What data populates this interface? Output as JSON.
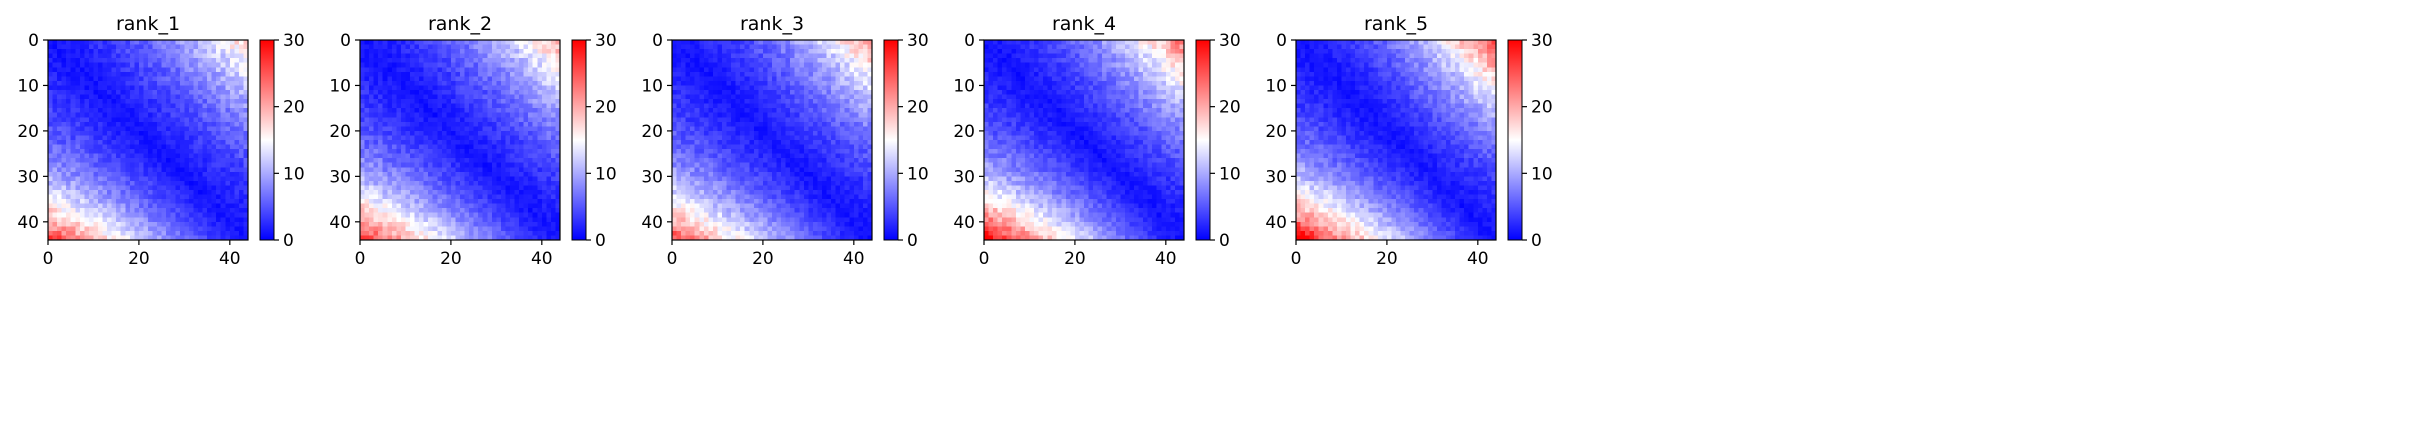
{
  "chart_data": [
    {
      "type": "heatmap",
      "title": "rank_1",
      "size": 44,
      "x_ticks": [
        0,
        20,
        40
      ],
      "y_ticks": [
        0,
        10,
        20,
        30,
        40
      ],
      "colorbar": {
        "min": 0,
        "max": 30,
        "ticks": [
          0,
          10,
          20,
          30
        ],
        "colormap": "bwr"
      },
      "approx_pattern": {
        "bottom_left_peak": 26,
        "upper_right_peak": 18,
        "diagonal": 1,
        "noise": 2
      }
    },
    {
      "type": "heatmap",
      "title": "rank_2",
      "size": 44,
      "x_ticks": [
        0,
        20,
        40
      ],
      "y_ticks": [
        0,
        10,
        20,
        30,
        40
      ],
      "colorbar": {
        "min": 0,
        "max": 30,
        "ticks": [
          0,
          10,
          20,
          30
        ],
        "colormap": "bwr"
      },
      "approx_pattern": {
        "bottom_left_peak": 27,
        "upper_right_peak": 20,
        "diagonal": 1,
        "noise": 2
      }
    },
    {
      "type": "heatmap",
      "title": "rank_3",
      "size": 44,
      "x_ticks": [
        0,
        20,
        40
      ],
      "y_ticks": [
        0,
        10,
        20,
        30,
        40
      ],
      "colorbar": {
        "min": 0,
        "max": 30,
        "ticks": [
          0,
          10,
          20,
          30
        ],
        "colormap": "bwr"
      },
      "approx_pattern": {
        "bottom_left_peak": 25,
        "upper_right_peak": 21,
        "diagonal": 1,
        "noise": 2
      }
    },
    {
      "type": "heatmap",
      "title": "rank_4",
      "size": 44,
      "x_ticks": [
        0,
        20,
        40
      ],
      "y_ticks": [
        0,
        10,
        20,
        30,
        40
      ],
      "colorbar": {
        "min": 0,
        "max": 30,
        "ticks": [
          0,
          10,
          20,
          30
        ],
        "colormap": "bwr"
      },
      "approx_pattern": {
        "bottom_left_peak": 30,
        "upper_right_peak": 23,
        "diagonal": 1,
        "noise": 2
      }
    },
    {
      "type": "heatmap",
      "title": "rank_5",
      "size": 44,
      "x_ticks": [
        0,
        20,
        40
      ],
      "y_ticks": [
        0,
        10,
        20,
        30,
        40
      ],
      "colorbar": {
        "min": 0,
        "max": 30,
        "ticks": [
          0,
          10,
          20,
          30
        ],
        "colormap": "bwr"
      },
      "approx_pattern": {
        "bottom_left_peak": 30,
        "upper_right_peak": 26,
        "diagonal": 1,
        "noise": 2
      }
    }
  ]
}
